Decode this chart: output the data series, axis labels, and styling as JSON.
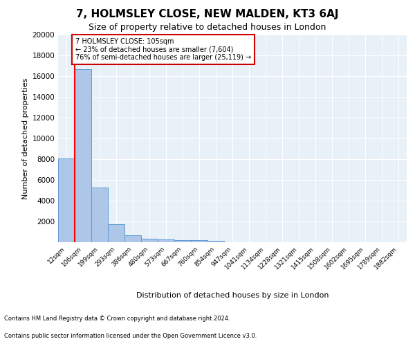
{
  "title1": "7, HOLMSLEY CLOSE, NEW MALDEN, KT3 6AJ",
  "title2": "Size of property relative to detached houses in London",
  "xlabel": "Distribution of detached houses by size in London",
  "ylabel": "Number of detached properties",
  "footnote1": "Contains HM Land Registry data © Crown copyright and database right 2024.",
  "footnote2": "Contains public sector information licensed under the Open Government Licence v3.0.",
  "bar_labels": [
    "12sqm",
    "106sqm",
    "199sqm",
    "293sqm",
    "386sqm",
    "480sqm",
    "573sqm",
    "667sqm",
    "760sqm",
    "854sqm",
    "947sqm",
    "1041sqm",
    "1134sqm",
    "1228sqm",
    "1321sqm",
    "1415sqm",
    "1508sqm",
    "1602sqm",
    "1695sqm",
    "1789sqm",
    "1882sqm"
  ],
  "bar_heights": [
    8100,
    16700,
    5300,
    1750,
    700,
    330,
    250,
    200,
    175,
    150,
    0,
    0,
    0,
    0,
    0,
    0,
    0,
    0,
    0,
    0,
    0
  ],
  "bar_color": "#aec6e8",
  "bar_edge_color": "#5b9bd5",
  "annotation_text_line1": "7 HOLMSLEY CLOSE: 105sqm",
  "annotation_text_line2": "← 23% of detached houses are smaller (7,604)",
  "annotation_text_line3": "76% of semi-detached houses are larger (25,119) →",
  "annotation_box_color": "#ffffff",
  "annotation_box_edge": "#cc0000",
  "ylim": [
    0,
    20000
  ],
  "yticks": [
    0,
    2000,
    4000,
    6000,
    8000,
    10000,
    12000,
    14000,
    16000,
    18000,
    20000
  ],
  "background_color": "#e8f0f8",
  "grid_color": "#ffffff",
  "title1_fontsize": 11,
  "title2_fontsize": 9,
  "ylabel_fontsize": 8,
  "xlabel_fontsize": 8,
  "footnote_fontsize": 6,
  "annotation_fontsize": 7
}
